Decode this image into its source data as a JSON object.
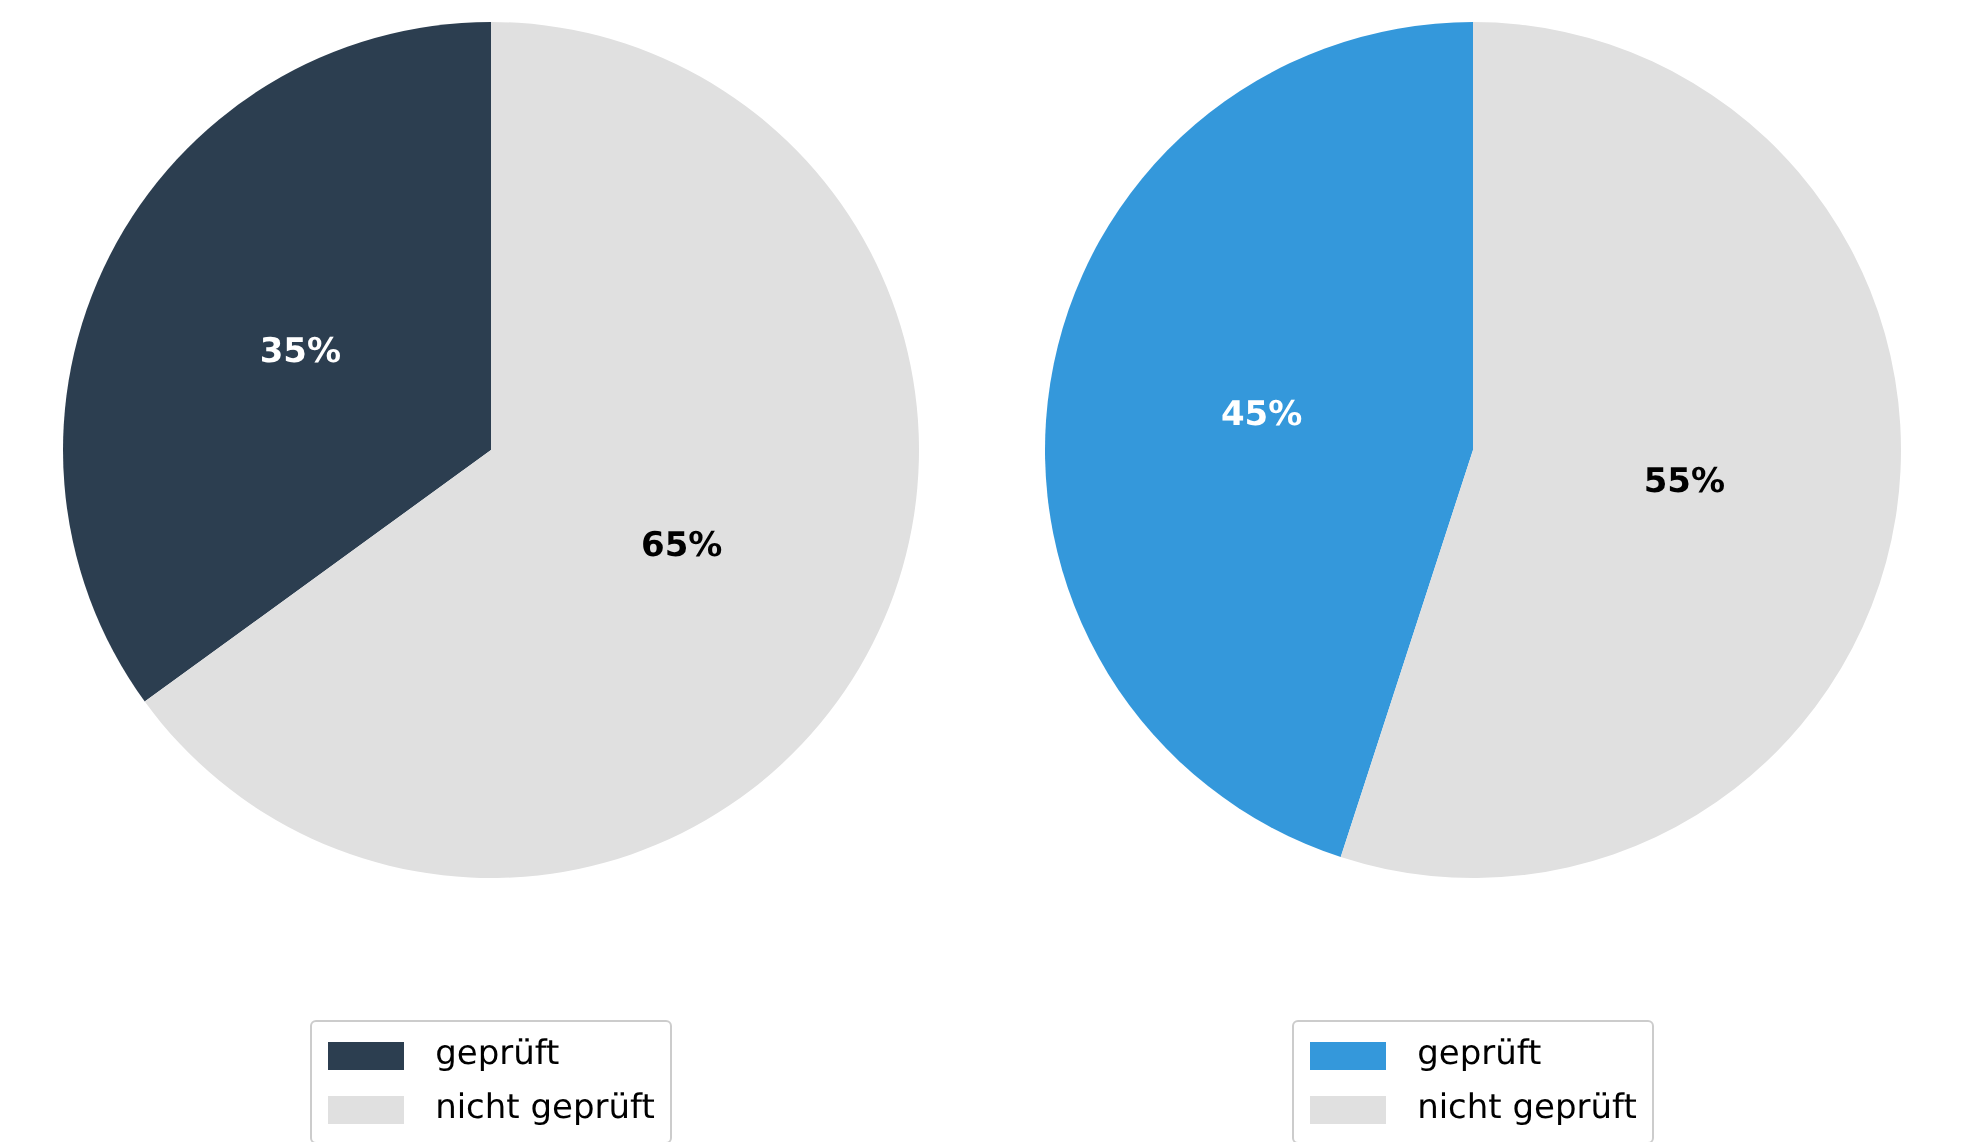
{
  "chart_data": [
    {
      "type": "pie",
      "categories": [
        "geprüft",
        "nicht geprüft"
      ],
      "values": [
        35,
        65
      ],
      "colors": [
        "#2c3e50",
        "#e0e0e0"
      ],
      "value_labels": [
        "35%",
        "65%"
      ],
      "legend": "bottom"
    },
    {
      "type": "pie",
      "categories": [
        "geprüft",
        "nicht geprüft"
      ],
      "values": [
        45,
        55
      ],
      "colors": [
        "#3498db",
        "#e0e0e0"
      ],
      "value_labels": [
        "45%",
        "55%"
      ],
      "legend": "bottom"
    }
  ]
}
